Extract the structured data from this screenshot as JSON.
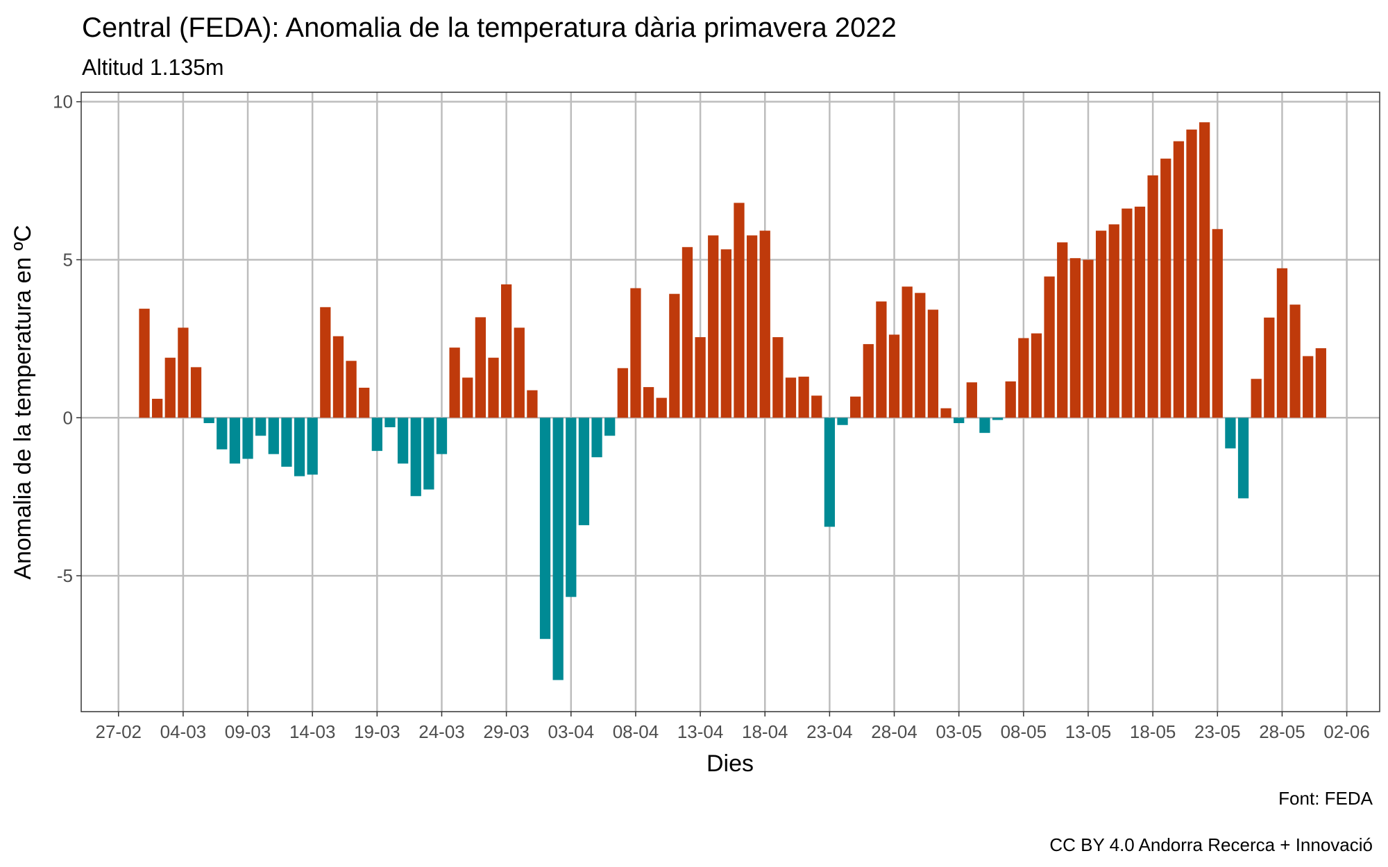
{
  "chart_data": {
    "type": "bar",
    "title": "Central (FEDA): Anomalia de la temperatura dària primavera 2022",
    "subtitle": "Altitud 1.135m",
    "xlabel": "Dies",
    "ylabel": "Anomalia de la temperatura en ºC",
    "caption_source": "Font: FEDA",
    "caption_license": "CC BY 4.0 Andorra Recerca + Innovació",
    "x_ticks": [
      "27-02",
      "04-03",
      "09-03",
      "14-03",
      "19-03",
      "24-03",
      "29-03",
      "03-04",
      "08-04",
      "13-04",
      "18-04",
      "23-04",
      "28-04",
      "03-05",
      "08-05",
      "13-05",
      "18-05",
      "23-05",
      "28-05",
      "02-06"
    ],
    "y_ticks": [
      -5,
      0,
      5,
      10
    ],
    "ylim": [
      -9.3,
      10.3
    ],
    "grid": true,
    "colors": {
      "positive": "#bf3a0b",
      "negative": "#008a94"
    },
    "series": [
      {
        "values": [
          3.45,
          0.6,
          1.9,
          2.85,
          1.6,
          -0.17,
          -1.0,
          -1.45,
          -1.3,
          -0.57,
          -1.15,
          -1.55,
          -1.85,
          -1.8,
          3.5,
          2.58,
          1.8,
          0.95,
          -1.05,
          -0.3,
          -1.45,
          -2.48,
          -2.27,
          -1.15,
          2.22,
          1.27,
          3.18,
          1.9,
          4.22,
          2.85,
          0.87,
          -7.0,
          -8.3,
          -5.67,
          -3.4,
          -1.25,
          -0.57,
          1.57,
          4.1,
          0.97,
          0.63,
          3.92,
          5.4,
          2.55,
          5.77,
          5.33,
          6.8,
          5.77,
          5.92,
          2.55,
          1.27,
          1.3,
          0.7,
          -3.45,
          -0.23,
          0.67,
          2.33,
          3.68,
          2.63,
          4.15,
          3.95,
          3.42,
          0.3,
          -0.17,
          1.12,
          -0.48,
          -0.07,
          1.15,
          2.52,
          2.67,
          4.47,
          5.55,
          5.05,
          5.0,
          5.92,
          6.12,
          6.62,
          6.68,
          7.67,
          8.2,
          8.75,
          9.12,
          9.35,
          5.97,
          -0.97,
          -2.55,
          1.23,
          3.17,
          4.73,
          3.58,
          1.95,
          2.2
        ]
      }
    ]
  }
}
